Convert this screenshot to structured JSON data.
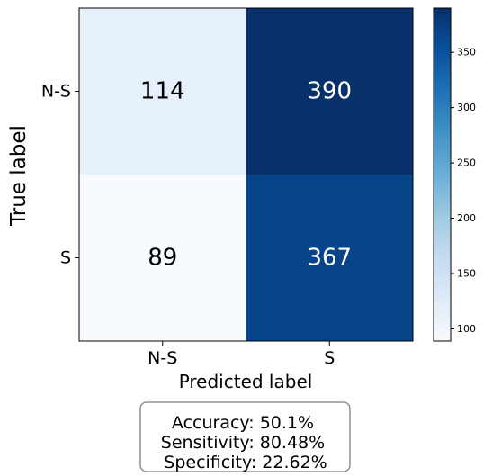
{
  "chart_data": {
    "type": "heatmap",
    "title": "",
    "xlabel": "Predicted label",
    "ylabel": "True label",
    "x_categories": [
      "N-S",
      "S"
    ],
    "y_categories": [
      "N-S",
      "S"
    ],
    "matrix": [
      [
        114,
        390
      ],
      [
        89,
        367
      ]
    ],
    "colormap": "Blues",
    "colorbar": {
      "vmin": 89,
      "vmax": 390,
      "ticks": [
        100,
        150,
        200,
        250,
        300,
        350
      ]
    },
    "summary_lines": [
      "Accuracy: 50.1%",
      "Sensitivity: 80.48%",
      " Specificity: 22.62%"
    ],
    "colors": {
      "cmap_low": "#f7fbff",
      "cmap_high": "#08306b",
      "text_dark": "#000000",
      "text_light": "#ffffff",
      "box_border": "#808080"
    }
  }
}
